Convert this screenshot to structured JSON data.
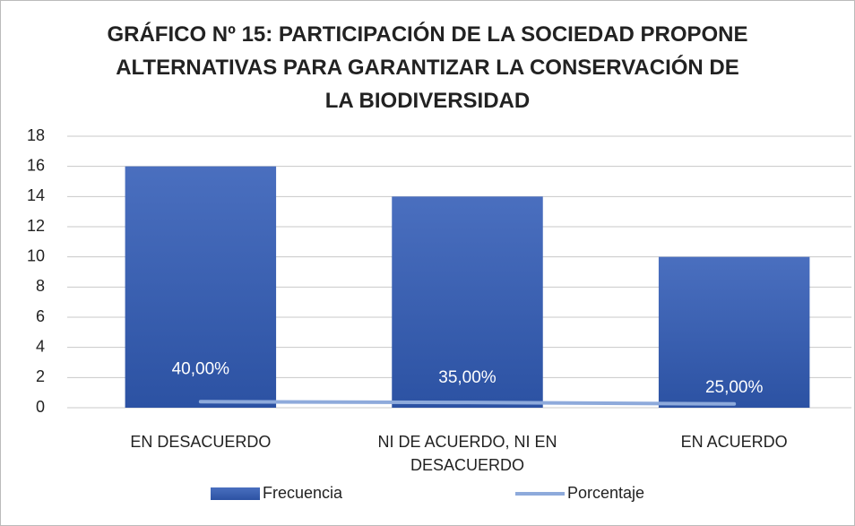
{
  "chart_data": {
    "type": "bar",
    "title": "GRÁFICO Nº 15:  PARTICIPACIÓN DE LA SOCIEDAD PROPONE ALTERNATIVAS PARA GARANTIZAR LA CONSERVACIÓN DE LA BIODIVERSIDAD",
    "categories": [
      "EN DESACUERDO",
      "NI DE ACUERDO, NI EN DESACUERDO",
      "EN ACUERDO"
    ],
    "series": [
      {
        "name": "Frecuencia",
        "type": "bar",
        "color": "#3a5fb0",
        "values": [
          16,
          14,
          10
        ]
      },
      {
        "name": "Porcentaje",
        "type": "line",
        "color": "#8eaadb",
        "values": [
          0.4,
          0.35,
          0.25
        ],
        "value_labels": [
          "40,00%",
          "35,00%",
          "25,00%"
        ]
      }
    ],
    "ylim": [
      0,
      18
    ],
    "yticks": [
      0,
      2,
      4,
      6,
      8,
      10,
      12,
      14,
      16,
      18
    ],
    "grid": true,
    "legend": "bottom"
  }
}
